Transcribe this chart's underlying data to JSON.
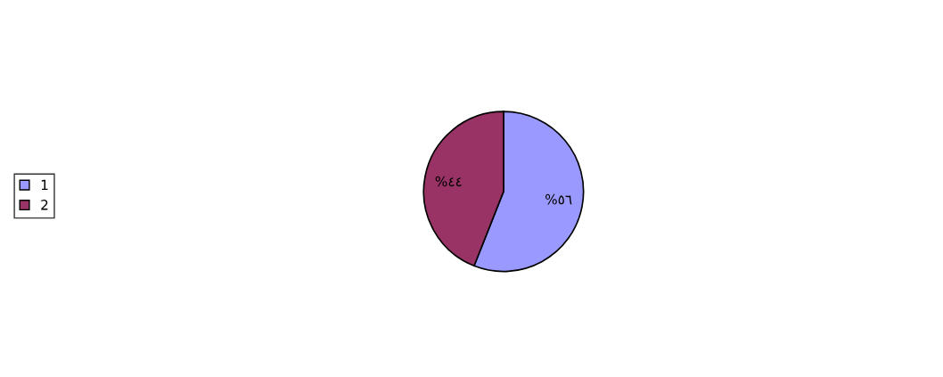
{
  "chart_data": {
    "type": "pie",
    "categories": [
      "1",
      "2"
    ],
    "values": [
      56,
      44
    ],
    "colors": [
      "#9999ff",
      "#993366"
    ],
    "value_labels": [
      "%٥٦",
      "%٤٤"
    ],
    "legend": "left"
  }
}
